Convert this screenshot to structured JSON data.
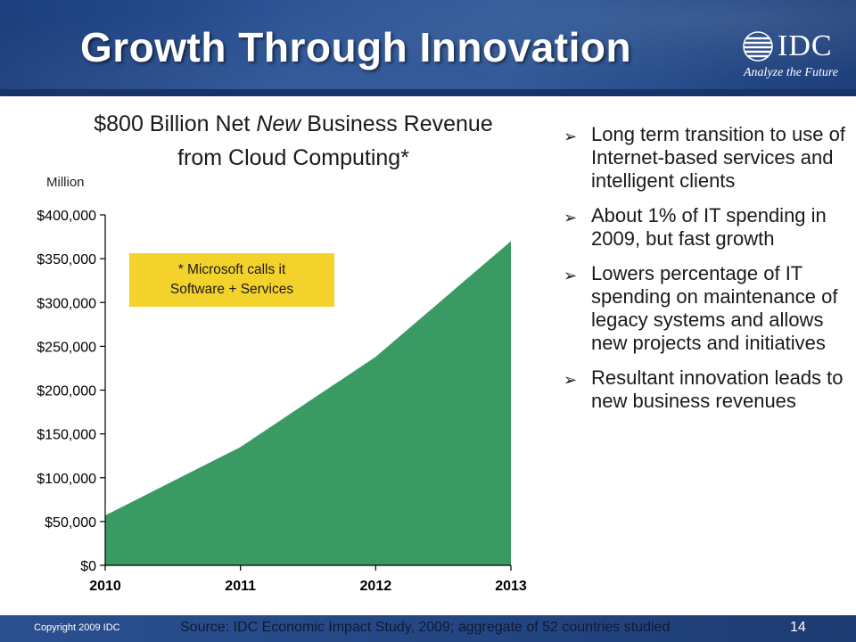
{
  "header": {
    "title": "Growth Through Innovation",
    "logo_name": "IDC",
    "logo_tagline": "Analyze the Future",
    "logo_icon": "globe-icon"
  },
  "chart_title": {
    "part1": "$800 Billion Net ",
    "part2": "New",
    "part3": " Business Revenue from Cloud Computing*"
  },
  "unit_label": "Million",
  "note": {
    "line1": "* Microsoft calls it",
    "line2": "Software + Services"
  },
  "bullets": [
    "Long term transition to use of Internet-based services and intelligent clients",
    "About 1% of IT spending in 2009, but fast growth",
    "Lowers percentage of IT spending on maintenance of legacy systems and allows new projects and initiatives",
    "Resultant innovation leads to new business revenues"
  ],
  "footer": {
    "copyright": "Copyright 2009 IDC",
    "source": "Source:  IDC Economic Impact Study, 2009; aggregate of 52 countries studied",
    "page": "14"
  },
  "colors": {
    "area_fill": "#3a9a63",
    "note_fill": "#f4d22c",
    "header": "#2a5294"
  },
  "chart_data": {
    "type": "area",
    "x": [
      "2010",
      "2011",
      "2012",
      "2013"
    ],
    "series": [
      {
        "values": [
          57000,
          135000,
          238000,
          370000
        ]
      }
    ],
    "ylim": [
      0,
      400000
    ],
    "yticks": [
      0,
      50000,
      100000,
      150000,
      200000,
      250000,
      300000,
      350000,
      400000
    ],
    "ytick_labels": [
      "$0",
      "$50,000",
      "$100,000",
      "$150,000",
      "$200,000",
      "$250,000",
      "$300,000",
      "$350,000",
      "$400,000"
    ],
    "grid": false,
    "legend": "none"
  }
}
